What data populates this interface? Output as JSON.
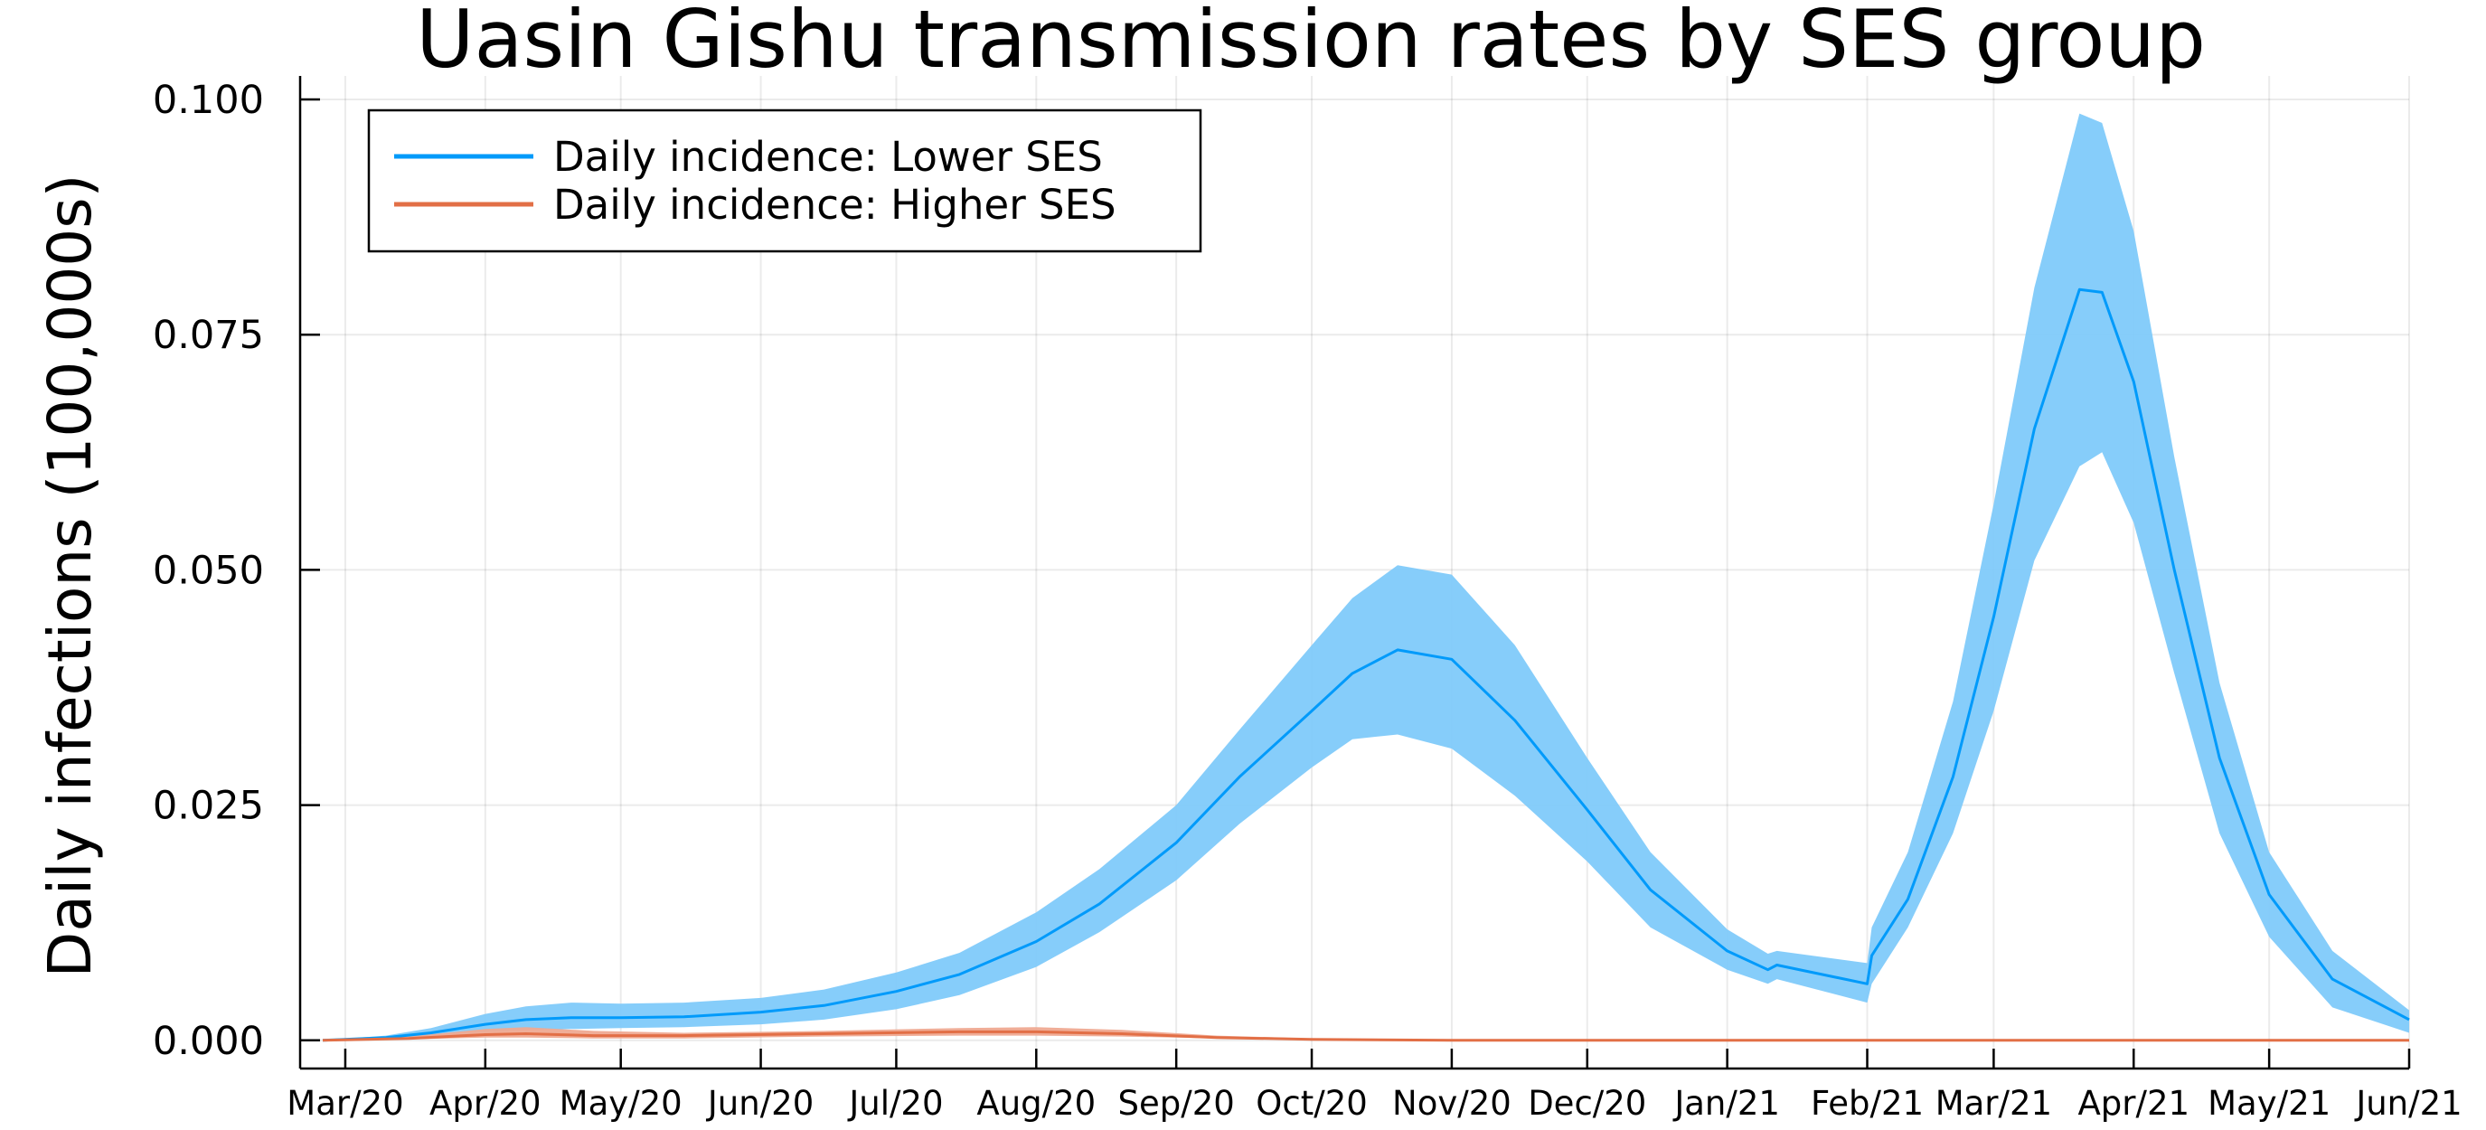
{
  "chart_data": {
    "type": "line",
    "title": "Uasin Gishu transmission rates by SES group",
    "xlabel": "",
    "ylabel": "Daily infections (100,000s)",
    "ylim": [
      -0.003,
      0.1025
    ],
    "yticks": [
      0.0,
      0.025,
      0.05,
      0.075,
      0.1
    ],
    "ytick_labels": [
      "0.000",
      "0.025",
      "0.050",
      "0.075",
      "0.100"
    ],
    "xlim": [
      "2020-02-20",
      "2021-06-01"
    ],
    "xticks": [
      "2020-03-01",
      "2020-04-01",
      "2020-05-01",
      "2020-06-01",
      "2020-07-01",
      "2020-08-01",
      "2020-09-01",
      "2020-10-01",
      "2020-11-01",
      "2020-12-01",
      "2021-01-01",
      "2021-02-01",
      "2021-03-01",
      "2021-04-01",
      "2021-05-01",
      "2021-06-01"
    ],
    "xtick_labels": [
      "Mar/20",
      "Apr/20",
      "May/20",
      "Jun/20",
      "Jul/20",
      "Aug/20",
      "Sep/20",
      "Oct/20",
      "Nov/20",
      "Dec/20",
      "Jan/21",
      "Feb/21",
      "Mar/21",
      "Apr/21",
      "May/21",
      "Jun/21"
    ],
    "grid": true,
    "legend_position": "top-left",
    "series": [
      {
        "name": "Daily incidence: Lower SES",
        "color": "#009AFA",
        "band_color": "#7FCAFA",
        "points": [
          {
            "x": "2020-02-25",
            "y": 0.0,
            "lo": 0.0,
            "hi": 0.0
          },
          {
            "x": "2020-03-10",
            "y": 0.0003,
            "lo": 0.0002,
            "hi": 0.0005
          },
          {
            "x": "2020-03-20",
            "y": 0.0008,
            "lo": 0.0005,
            "hi": 0.0013
          },
          {
            "x": "2020-04-01",
            "y": 0.0017,
            "lo": 0.0009,
            "hi": 0.0028
          },
          {
            "x": "2020-04-10",
            "y": 0.0022,
            "lo": 0.0011,
            "hi": 0.0036
          },
          {
            "x": "2020-04-20",
            "y": 0.0024,
            "lo": 0.0012,
            "hi": 0.004
          },
          {
            "x": "2020-05-01",
            "y": 0.0024,
            "lo": 0.0013,
            "hi": 0.0039
          },
          {
            "x": "2020-05-15",
            "y": 0.0025,
            "lo": 0.0014,
            "hi": 0.004
          },
          {
            "x": "2020-06-01",
            "y": 0.003,
            "lo": 0.0017,
            "hi": 0.0045
          },
          {
            "x": "2020-06-15",
            "y": 0.0037,
            "lo": 0.0022,
            "hi": 0.0054
          },
          {
            "x": "2020-07-01",
            "y": 0.0052,
            "lo": 0.0033,
            "hi": 0.0072
          },
          {
            "x": "2020-07-15",
            "y": 0.007,
            "lo": 0.0048,
            "hi": 0.0093
          },
          {
            "x": "2020-08-01",
            "y": 0.0105,
            "lo": 0.0078,
            "hi": 0.0136
          },
          {
            "x": "2020-08-15",
            "y": 0.0145,
            "lo": 0.0115,
            "hi": 0.0182
          },
          {
            "x": "2020-09-01",
            "y": 0.021,
            "lo": 0.017,
            "hi": 0.025
          },
          {
            "x": "2020-09-15",
            "y": 0.028,
            "lo": 0.023,
            "hi": 0.033
          },
          {
            "x": "2020-10-01",
            "y": 0.035,
            "lo": 0.029,
            "hi": 0.042
          },
          {
            "x": "2020-10-10",
            "y": 0.039,
            "lo": 0.032,
            "hi": 0.047
          },
          {
            "x": "2020-10-20",
            "y": 0.0415,
            "lo": 0.0325,
            "hi": 0.0505
          },
          {
            "x": "2020-11-01",
            "y": 0.0405,
            "lo": 0.031,
            "hi": 0.0495
          },
          {
            "x": "2020-11-15",
            "y": 0.034,
            "lo": 0.026,
            "hi": 0.042
          },
          {
            "x": "2020-12-01",
            "y": 0.0245,
            "lo": 0.019,
            "hi": 0.03
          },
          {
            "x": "2020-12-15",
            "y": 0.016,
            "lo": 0.012,
            "hi": 0.02
          },
          {
            "x": "2021-01-01",
            "y": 0.0095,
            "lo": 0.0075,
            "hi": 0.0118
          },
          {
            "x": "2021-01-10",
            "y": 0.0075,
            "lo": 0.006,
            "hi": 0.0092
          },
          {
            "x": "2021-01-12",
            "y": 0.008,
            "lo": 0.0065,
            "hi": 0.0095
          },
          {
            "x": "2021-02-01",
            "y": 0.006,
            "lo": 0.004,
            "hi": 0.0082
          },
          {
            "x": "2021-02-02",
            "y": 0.009,
            "lo": 0.006,
            "hi": 0.012
          },
          {
            "x": "2021-02-10",
            "y": 0.015,
            "lo": 0.012,
            "hi": 0.02
          },
          {
            "x": "2021-02-20",
            "y": 0.028,
            "lo": 0.022,
            "hi": 0.036
          },
          {
            "x": "2021-03-01",
            "y": 0.045,
            "lo": 0.035,
            "hi": 0.057
          },
          {
            "x": "2021-03-10",
            "y": 0.065,
            "lo": 0.051,
            "hi": 0.08
          },
          {
            "x": "2021-03-20",
            "y": 0.0798,
            "lo": 0.061,
            "hi": 0.0985
          },
          {
            "x": "2021-03-25",
            "y": 0.0795,
            "lo": 0.0625,
            "hi": 0.0975
          },
          {
            "x": "2021-04-01",
            "y": 0.07,
            "lo": 0.055,
            "hi": 0.086
          },
          {
            "x": "2021-04-10",
            "y": 0.05,
            "lo": 0.039,
            "hi": 0.062
          },
          {
            "x": "2021-04-20",
            "y": 0.03,
            "lo": 0.022,
            "hi": 0.038
          },
          {
            "x": "2021-05-01",
            "y": 0.0155,
            "lo": 0.011,
            "hi": 0.02
          },
          {
            "x": "2021-05-15",
            "y": 0.0065,
            "lo": 0.0035,
            "hi": 0.0095
          },
          {
            "x": "2021-06-01",
            "y": 0.0022,
            "lo": 0.0008,
            "hi": 0.0032
          }
        ]
      },
      {
        "name": "Daily incidence: Higher SES",
        "color": "#E26F46",
        "band_color": "#EFA991",
        "points": [
          {
            "x": "2020-02-25",
            "y": 0.0,
            "lo": 0.0,
            "hi": 0.0
          },
          {
            "x": "2020-03-15",
            "y": 0.0002,
            "lo": 0.0001,
            "hi": 0.0004
          },
          {
            "x": "2020-04-01",
            "y": 0.0006,
            "lo": 0.0003,
            "hi": 0.0012
          },
          {
            "x": "2020-04-10",
            "y": 0.0007,
            "lo": 0.0003,
            "hi": 0.0014
          },
          {
            "x": "2020-04-25",
            "y": 0.0005,
            "lo": 0.0002,
            "hi": 0.001
          },
          {
            "x": "2020-05-15",
            "y": 0.0005,
            "lo": 0.0002,
            "hi": 0.0008
          },
          {
            "x": "2020-06-15",
            "y": 0.0007,
            "lo": 0.0004,
            "hi": 0.001
          },
          {
            "x": "2020-07-15",
            "y": 0.0009,
            "lo": 0.0005,
            "hi": 0.0013
          },
          {
            "x": "2020-08-01",
            "y": 0.0009,
            "lo": 0.0005,
            "hi": 0.0014
          },
          {
            "x": "2020-08-20",
            "y": 0.0007,
            "lo": 0.0004,
            "hi": 0.0011
          },
          {
            "x": "2020-09-10",
            "y": 0.0003,
            "lo": 0.0002,
            "hi": 0.0005
          },
          {
            "x": "2020-10-01",
            "y": 0.0001,
            "lo": 0.0,
            "hi": 0.0002
          },
          {
            "x": "2020-11-01",
            "y": 0.0,
            "lo": 0.0,
            "hi": 0.0
          },
          {
            "x": "2021-06-01",
            "y": 0.0,
            "lo": 0.0,
            "hi": 0.0
          }
        ]
      }
    ]
  }
}
